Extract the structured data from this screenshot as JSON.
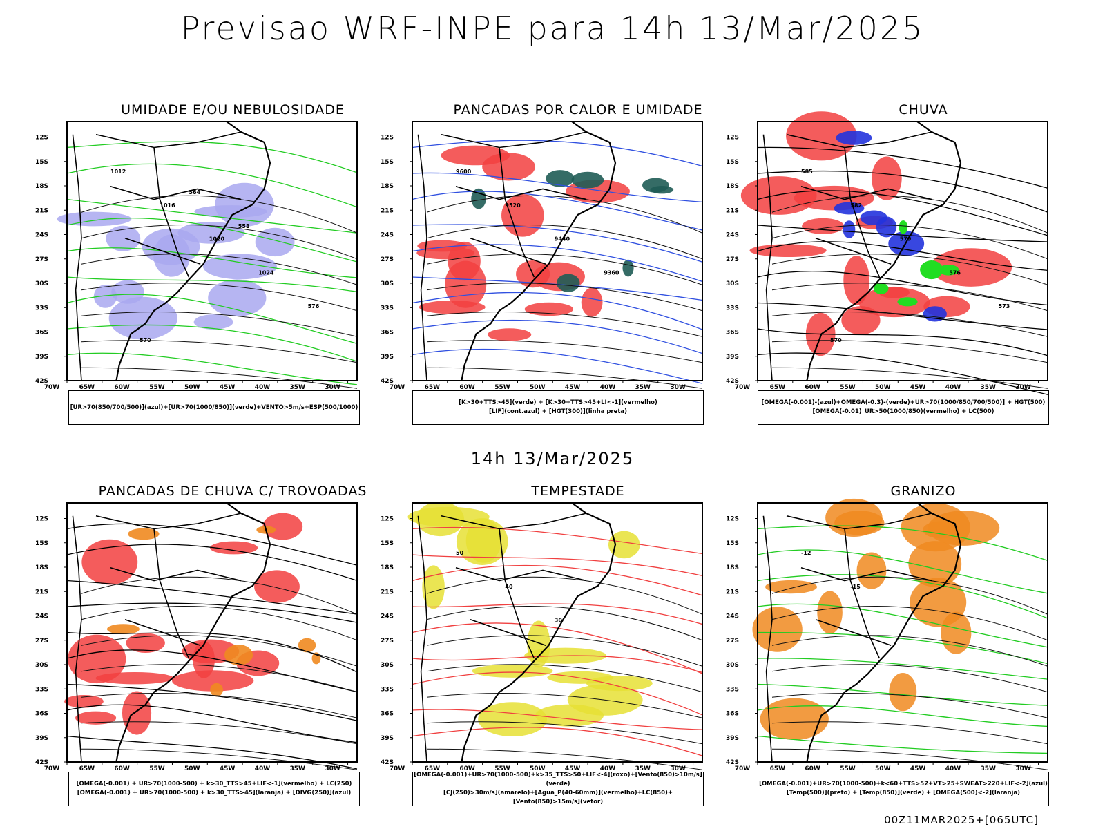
{
  "header": {
    "title": "Previsao WRF-INPE  para 14h 13/Mar/2025"
  },
  "middle_title": "14h 13/Mar/2025",
  "footer": "00Z11MAR2025+[065UTC]",
  "axes": {
    "lat_ticks": [
      "12S",
      "15S",
      "18S",
      "21S",
      "24S",
      "27S",
      "30S",
      "33S",
      "36S",
      "39S",
      "42S"
    ],
    "lon_ticks": [
      "70W",
      "65W",
      "60W",
      "55W",
      "50W",
      "45W",
      "40W",
      "35W",
      "30W"
    ]
  },
  "panels": [
    {
      "title": "UMIDADE E/OU NEBULOSIDADE",
      "caption_lines": [
        "[UR>70(850/700/500)](azul)+[UR>70(1000/850)](verde)+VENTO>5m/s+ESP(500/1000)"
      ],
      "contour_labels": [
        "1012",
        "1016",
        "1020",
        "1024",
        "576",
        "570",
        "564",
        "558"
      ],
      "colors": {
        "fill": "#a9a8f0",
        "contour": "#22cc22",
        "line": "#ff3333"
      }
    },
    {
      "title": "PANCADAS POR CALOR E UMIDADE",
      "caption_lines": [
        "[K>30+TTS>45](verde) + [K>30+TTS>45+LI<-1](vermelho)",
        "[LIF](cont.azul) + [HGT(300)](linha preta)"
      ],
      "contour_labels": [
        "9600",
        "9520",
        "9440",
        "9360"
      ],
      "colors": {
        "fill": "#f24040",
        "fill2": "#1f5c55",
        "contour": "#3050e0"
      }
    },
    {
      "title": "CHUVA",
      "caption_lines": [
        "[OMEGA(-0.001)-(azul)+OMEGA(-0.3)-(verde)+UR>70(1000/850/700/500)] + HGT(500)",
        "[OMEGA(-0.01)_UR>50(1000/850)(vermelho) + LC(500)"
      ],
      "contour_labels": [
        "585",
        "582",
        "579",
        "576",
        "573",
        "570"
      ],
      "colors": {
        "fill": "#f24040",
        "fill2": "#2233dd",
        "fill3": "#22dd22"
      }
    },
    {
      "title": "PANCADAS DE CHUVA C/ TROVOADAS",
      "caption_lines": [
        "[OMEGA(-0.001) + UR>70(1000-500) + k>30_TTS>45+LIF<-1](vermelho) + LC(250)",
        "[OMEGA(-0.001) + UR>70(1000-500) + k>30_TTS>45](laranja) + [DIVG(250)](azul)"
      ],
      "contour_labels": [],
      "colors": {
        "fill": "#f24040",
        "fill2": "#f08a20"
      }
    },
    {
      "title": "TEMPESTADE",
      "caption_lines": [
        "[OMEGA(-0.001)+UR>70(1000-500)+k>35_TTS>50+LIF<-4](roxo)+[Vento(850)>10m/s](verde)",
        "[CJ(250)>30m/s](amarelo)+[Agua_P(40-60mm)](vermelho)+LC(850)+[Vento(850)>15m/s](vetor)"
      ],
      "contour_labels": [
        "50",
        "40",
        "30"
      ],
      "colors": {
        "fill": "#e6e035",
        "contour": "#f04040"
      }
    },
    {
      "title": "GRANIZO",
      "caption_lines": [
        "[OMEGA(-0.001)+UR>70(1000-500)+k<60+TTS>52+VT>25+SWEAT>220+LIF<-2](azul)",
        "[Temp(500)](preto) + [Temp(850)](verde) + [OMEGA(500)<-2](laranja)"
      ],
      "contour_labels": [
        "-12",
        "-15"
      ],
      "colors": {
        "contour": "#22cc22",
        "fill": "#f08a20"
      }
    }
  ]
}
